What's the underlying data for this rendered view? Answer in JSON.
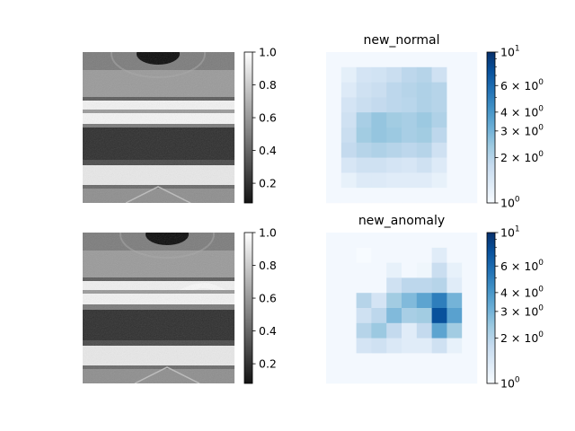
{
  "chart_data": [
    {
      "type": "image",
      "title": "",
      "colormap": "gray",
      "colorbar": {
        "scale": "linear",
        "range": [
          0.08,
          1.0
        ],
        "ticks": [
          "0.2",
          "0.4",
          "0.6",
          "0.8",
          "1.0"
        ],
        "tick_values": [
          0.2,
          0.4,
          0.6,
          0.8,
          1.0
        ]
      },
      "axes": "off"
    },
    {
      "type": "heatmap",
      "title": "new_normal",
      "colormap": "Blues",
      "colorbar": {
        "scale": "log",
        "range": [
          1,
          10
        ],
        "ticks": [
          {
            "mantissa": "",
            "exp": "0",
            "value": 1
          },
          {
            "mantissa": "2 × ",
            "exp": "0",
            "value": 2
          },
          {
            "mantissa": "3 × ",
            "exp": "0",
            "value": 3
          },
          {
            "mantissa": "4 × ",
            "exp": "0",
            "value": 4
          },
          {
            "mantissa": "6 × ",
            "exp": "0",
            "value": 6
          },
          {
            "mantissa": "",
            "exp": "1",
            "value": 10
          }
        ]
      },
      "grid_size": [
        10,
        10
      ],
      "values": [
        [
          1.05,
          1.05,
          1.05,
          1.05,
          1.05,
          1.05,
          1.05,
          1.05,
          1.05,
          1.05
        ],
        [
          1.05,
          1.25,
          1.5,
          1.55,
          1.7,
          1.9,
          2.0,
          1.6,
          1.05,
          1.05
        ],
        [
          1.05,
          1.35,
          1.6,
          1.7,
          1.9,
          2.0,
          2.1,
          2.0,
          1.05,
          1.05
        ],
        [
          1.05,
          1.5,
          1.7,
          1.8,
          1.9,
          1.95,
          2.1,
          2.0,
          1.05,
          1.05
        ],
        [
          1.05,
          1.6,
          2.2,
          2.5,
          2.3,
          2.2,
          2.4,
          2.1,
          1.05,
          1.05
        ],
        [
          1.05,
          1.7,
          2.3,
          2.5,
          2.4,
          2.2,
          2.3,
          1.9,
          1.05,
          1.05
        ],
        [
          1.05,
          1.8,
          2.0,
          2.1,
          2.0,
          1.9,
          2.0,
          1.6,
          1.05,
          1.05
        ],
        [
          1.05,
          1.45,
          1.6,
          1.6,
          1.5,
          1.45,
          1.6,
          1.35,
          1.05,
          1.05
        ],
        [
          1.05,
          1.2,
          1.35,
          1.35,
          1.3,
          1.3,
          1.3,
          1.2,
          1.05,
          1.05
        ],
        [
          1.05,
          1.05,
          1.05,
          1.05,
          1.05,
          1.05,
          1.05,
          1.05,
          1.05,
          1.05
        ]
      ]
    },
    {
      "type": "image",
      "title": "",
      "colormap": "gray",
      "colorbar": {
        "scale": "linear",
        "range": [
          0.08,
          1.0
        ],
        "ticks": [
          "0.2",
          "0.4",
          "0.6",
          "0.8",
          "1.0"
        ],
        "tick_values": [
          0.2,
          0.4,
          0.6,
          0.8,
          1.0
        ]
      },
      "axes": "off"
    },
    {
      "type": "heatmap",
      "title": "new_anomaly",
      "colormap": "Blues",
      "colorbar": {
        "scale": "log",
        "range": [
          1,
          10
        ],
        "ticks": [
          {
            "mantissa": "",
            "exp": "0",
            "value": 1
          },
          {
            "mantissa": "2 × ",
            "exp": "0",
            "value": 2
          },
          {
            "mantissa": "3 × ",
            "exp": "0",
            "value": 3
          },
          {
            "mantissa": "4 × ",
            "exp": "0",
            "value": 4
          },
          {
            "mantissa": "6 × ",
            "exp": "0",
            "value": 6
          },
          {
            "mantissa": "",
            "exp": "1",
            "value": 10
          }
        ]
      },
      "grid_size": [
        10,
        10
      ],
      "values": [
        [
          1.05,
          1.05,
          1.05,
          1.05,
          1.05,
          1.05,
          1.05,
          1.05,
          1.05,
          1.05
        ],
        [
          1.05,
          1.05,
          1.0,
          1.05,
          1.05,
          1.05,
          1.05,
          1.3,
          1.05,
          1.05
        ],
        [
          1.05,
          1.05,
          1.05,
          1.05,
          1.2,
          1.05,
          1.1,
          1.7,
          1.2,
          1.05
        ],
        [
          1.05,
          1.05,
          1.05,
          1.05,
          1.6,
          1.9,
          1.9,
          2.0,
          1.3,
          1.05
        ],
        [
          1.05,
          1.05,
          2.0,
          1.5,
          2.3,
          2.8,
          3.5,
          5.0,
          3.0,
          1.05
        ],
        [
          1.05,
          1.05,
          1.6,
          1.9,
          2.8,
          2.2,
          2.3,
          7.5,
          3.6,
          1.05
        ],
        [
          1.05,
          1.05,
          2.0,
          2.4,
          1.8,
          1.3,
          1.8,
          3.5,
          2.3,
          1.05
        ],
        [
          1.05,
          1.05,
          1.5,
          1.6,
          1.4,
          1.3,
          1.3,
          1.6,
          1.2,
          1.05
        ],
        [
          1.05,
          1.05,
          1.05,
          1.05,
          1.05,
          1.05,
          1.05,
          1.05,
          1.05,
          1.05
        ],
        [
          1.05,
          1.05,
          1.05,
          1.05,
          1.05,
          1.05,
          1.05,
          1.05,
          1.05,
          1.05
        ]
      ]
    }
  ]
}
